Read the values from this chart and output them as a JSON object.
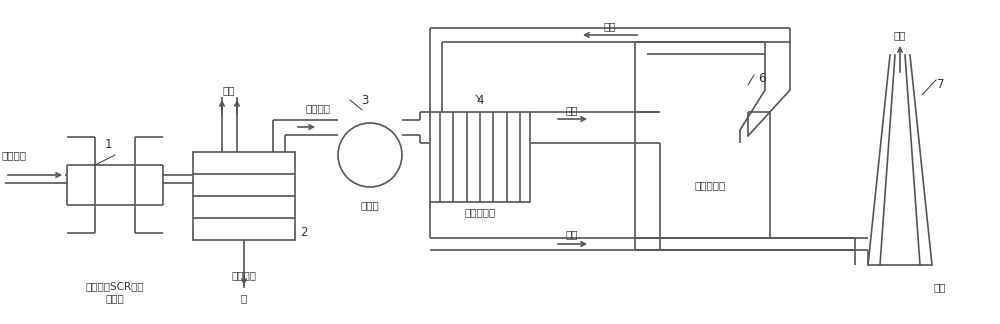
{
  "bg_color": "#ffffff",
  "line_color": "#555555",
  "text_color": "#333333",
  "lw": 1.2,
  "font_size": 8.5,
  "fig_width": 10.0,
  "fig_height": 3.24,
  "dpi": 100,
  "labels": {
    "input_gas": "焦炉烟气",
    "comp1": "中温耐硫SCR催化\n剂装置",
    "comp2": "余热锅炉",
    "comp3": "引风机",
    "comp4": "热备换热器",
    "comp6": "脱硫吸收塔",
    "comp7": "烟囱",
    "steam": "蒸汽",
    "water": "水",
    "jiao_gas": "焦化烟气",
    "smoke_left": "烟气",
    "smoke_mid": "烟气",
    "smoke_bot": "烟气",
    "smoke_chimney": "烟气",
    "n1": "1",
    "n2": "2",
    "n3": "3",
    "n4": "4",
    "n6": "6",
    "n7": "7"
  }
}
